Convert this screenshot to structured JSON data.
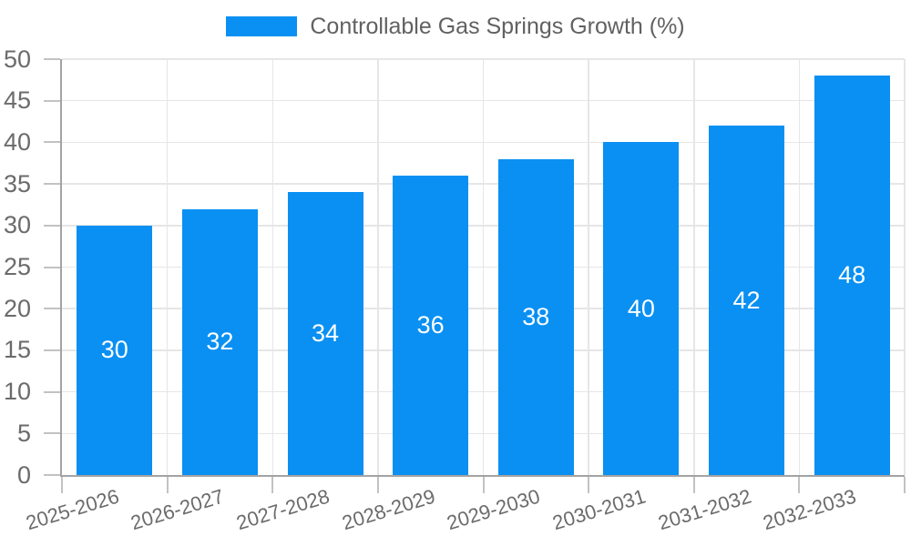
{
  "chart_data": {
    "type": "bar",
    "title": "",
    "legend": {
      "label": "Controllable Gas Springs Growth (%)",
      "position": "top"
    },
    "categories": [
      "2025-2026",
      "2026-2027",
      "2027-2028",
      "2028-2029",
      "2029-2030",
      "2030-2031",
      "2031-2032",
      "2032-2033"
    ],
    "values": [
      30,
      32,
      34,
      36,
      38,
      40,
      42,
      48
    ],
    "value_labels": [
      "30",
      "32",
      "34",
      "36",
      "38",
      "40",
      "42",
      "48"
    ],
    "xlabel": "",
    "ylabel": "",
    "ylim": [
      0,
      50
    ],
    "ytick_step": 5,
    "ytick_labels": [
      "0",
      "5",
      "10",
      "15",
      "20",
      "25",
      "30",
      "35",
      "40",
      "45",
      "50"
    ],
    "grid": true,
    "colors": {
      "bar": "#0a90f2",
      "value_label": "#ffffff",
      "axis_tick_label": "#6b6b6b",
      "legend_text": "#616161",
      "gridline": "#e6e6e6",
      "axis_line": "#a3a3a3",
      "tick_mark": "#c2c2c2",
      "background": "#ffffff"
    }
  }
}
